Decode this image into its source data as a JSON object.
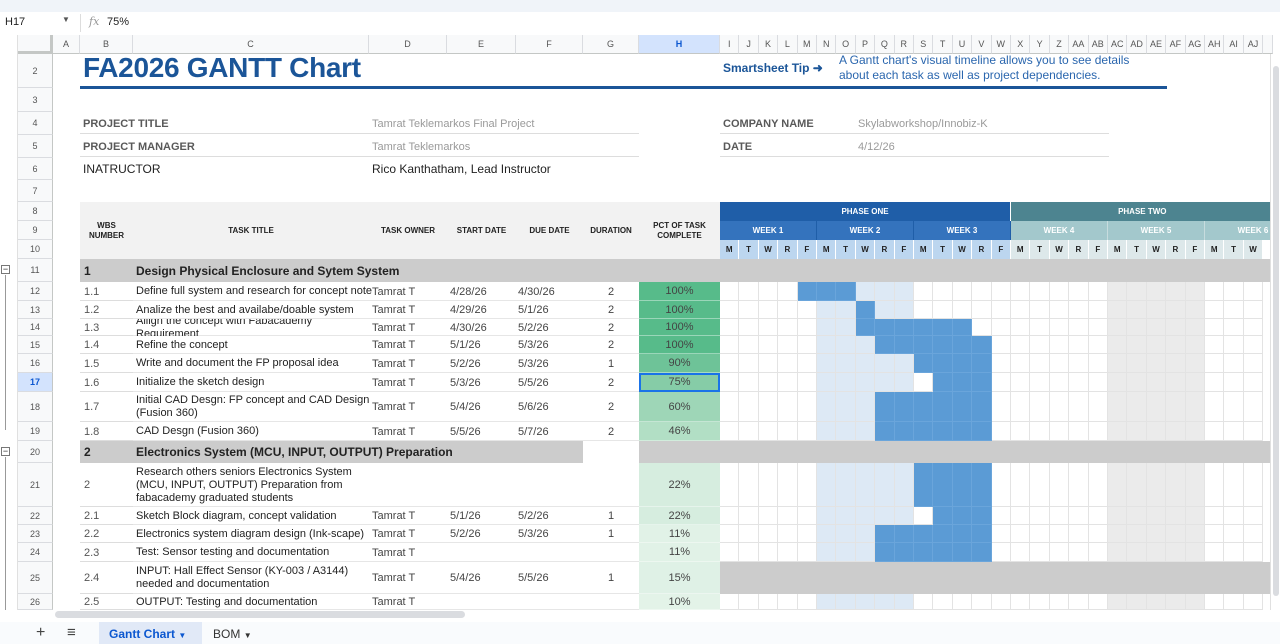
{
  "formula_bar": {
    "cell_ref": "H17",
    "fx": "fx",
    "value": "75%"
  },
  "columns": [
    "A",
    "B",
    "C",
    "D",
    "E",
    "F",
    "G",
    "H"
  ],
  "gantt_columns": [
    "I",
    "J",
    "K",
    "L",
    "M",
    "N",
    "O",
    "P",
    "Q",
    "R",
    "S",
    "T",
    "U",
    "V",
    "W",
    "X",
    "Y",
    "Z",
    "AA",
    "AB",
    "AC",
    "AD",
    "AE",
    "AF",
    "AG",
    "AH",
    "AI",
    "AJ"
  ],
  "rows": [
    "2",
    "3",
    "4",
    "5",
    "6",
    "7",
    "8",
    "9",
    "10",
    "11",
    "12",
    "13",
    "14",
    "15",
    "16",
    "17",
    "18",
    "19",
    "20",
    "21",
    "22",
    "23",
    "24",
    "25",
    "26"
  ],
  "title": "FA2026 GANTT Chart",
  "tip": {
    "label": "Smartsheet Tip ➜",
    "line1": "A Gantt chart's visual timeline allows you to see details",
    "line2": "about each task as well as project dependencies."
  },
  "project": {
    "title_label": "PROJECT TITLE",
    "title_value": "Tamrat Teklemarkos Final Project",
    "manager_label": "PROJECT MANAGER",
    "manager_value": "Tamrat Teklemarkos",
    "instructor_label": "INATRUCTOR",
    "instructor_value": "Rico Kanthatham, Lead Instructor",
    "company_label": "COMPANY NAME",
    "company_value": "Skylabworkshop/Innobiz-K",
    "date_label": "DATE",
    "date_value": "4/12/26"
  },
  "headers": {
    "wbs": "WBS NUMBER",
    "task": "TASK TITLE",
    "owner": "TASK OWNER",
    "start": "START DATE",
    "due": "DUE DATE",
    "duration": "DURATION",
    "pct": "PCT OF TASK COMPLETE"
  },
  "phases": [
    {
      "label": "PHASE ONE",
      "color": "#1f5ea8"
    },
    {
      "label": "PHASE TWO",
      "color": "#4d8490"
    }
  ],
  "weeks": [
    "WEEK 1",
    "WEEK 2",
    "WEEK 3",
    "WEEK 4",
    "WEEK 5",
    "WEEK 6"
  ],
  "days": [
    "M",
    "T",
    "W",
    "R",
    "F",
    "M",
    "T",
    "W",
    "R",
    "F",
    "M",
    "T",
    "W",
    "R",
    "F",
    "M",
    "T",
    "W",
    "R",
    "F",
    "M",
    "T",
    "W",
    "R",
    "F",
    "M",
    "T",
    "W"
  ],
  "tasks": [
    {
      "row": 11,
      "type": "section",
      "wbs": "1",
      "title": "Design Physical Enclosure and Sytem System"
    },
    {
      "row": 12,
      "wbs": "1.1",
      "title": "Define full system and research for concept note",
      "owner": "Tamrat T",
      "start": "4/28/26",
      "due": "4/30/26",
      "duration": "2",
      "pct": "100%",
      "fill": [
        4,
        6
      ]
    },
    {
      "row": 13,
      "wbs": "1.2",
      "title": "Analize the best and availabe/doable system",
      "owner": "Tamrat T",
      "start": "4/29/26",
      "due": "5/1/26",
      "duration": "2",
      "pct": "100%",
      "fill": [
        7,
        7
      ]
    },
    {
      "row": 14,
      "wbs": "1.3",
      "title": "Allign the concept with Fabacademy Requirement",
      "owner": "Tamrat T",
      "start": "4/30/26",
      "due": "5/2/26",
      "duration": "2",
      "pct": "100%",
      "fill": [
        7,
        12
      ]
    },
    {
      "row": 15,
      "wbs": "1.4",
      "title": "Refine the concept",
      "owner": "Tamrat T",
      "start": "5/1/26",
      "due": "5/3/26",
      "duration": "2",
      "pct": "100%",
      "fill": [
        8,
        13
      ]
    },
    {
      "row": 16,
      "wbs": "1.5",
      "title": "Write and document the FP proposal idea",
      "owner": "Tamrat T",
      "start": "5/2/26",
      "due": "5/3/26",
      "duration": "1",
      "pct": "90%",
      "fill": [
        10,
        13
      ]
    },
    {
      "row": 17,
      "wbs": "1.6",
      "title": "Initialize the sketch design",
      "owner": "Tamrat T",
      "start": "5/3/26",
      "due": "5/5/26",
      "duration": "2",
      "pct": "75%",
      "fill": [
        11,
        13
      ]
    },
    {
      "row": 18,
      "wbs": "1.7",
      "title": "Initial CAD Desgn: FP concept and CAD Design\n(Fusion 360)",
      "owner": "Tamrat T",
      "start": "5/4/26",
      "due": "5/6/26",
      "duration": "2",
      "pct": "60%",
      "fill": [
        8,
        13
      ]
    },
    {
      "row": 19,
      "wbs": "1.8",
      "title": " CAD Desgn (Fusion 360)",
      "owner": "Tamrat T",
      "start": "5/5/26",
      "due": "5/7/26",
      "duration": "2",
      "pct": "46%",
      "fill": [
        8,
        13
      ]
    },
    {
      "row": 20,
      "type": "section",
      "wbs": "2",
      "title": "Electronics System (MCU, INPUT, OUTPUT) Preparation"
    },
    {
      "row": 21,
      "wbs": "2",
      "title": "Research others seniors Electronics System\n(MCU, INPUT, OUTPUT) Preparation from\nfabacademy graduated students",
      "owner": "",
      "start": "",
      "due": "",
      "duration": "",
      "pct": "22%",
      "fill": [
        10,
        13
      ]
    },
    {
      "row": 22,
      "wbs": "2.1",
      "title": "Sketch Block diagram, concept validation",
      "owner": "Tamrat T",
      "start": "5/1/26",
      "due": "5/2/26",
      "duration": "1",
      "pct": "22%",
      "fill": [
        11,
        13
      ]
    },
    {
      "row": 23,
      "wbs": "2.2",
      "title": "Electronics system diagram design (Ink-scape)",
      "owner": "Tamrat T",
      "start": "5/2/26",
      "due": "5/3/26",
      "duration": "1",
      "pct": "11%",
      "fill": [
        8,
        13
      ]
    },
    {
      "row": 24,
      "wbs": "2.3",
      "title": "Test:  Sensor testing and documentation",
      "owner": "Tamrat T",
      "start": "",
      "due": "",
      "duration": "",
      "pct": "11%",
      "fill": [
        8,
        13
      ]
    },
    {
      "row": 25,
      "wbs": "2.4",
      "title": "INPUT: Hall Effect Sensor (KY-003 / A3144)\nneeded and documentation",
      "owner": "Tamrat T",
      "start": "5/4/26",
      "due": "5/5/26",
      "duration": "1",
      "pct": "15%",
      "gantt_gray": true
    },
    {
      "row": 26,
      "wbs": "2.5",
      "title": "OUTPUT: Testing and documentation",
      "owner": "Tamrat T",
      "start": "",
      "due": "",
      "duration": "",
      "pct": "10%"
    }
  ],
  "pct_colors": {
    "100%": "#57bb8a",
    "90%": "#6ec398",
    "75%": "#86cca7",
    "60%": "#9ed6b7",
    "46%": "#b2dfc5",
    "22%": "#d6eddf",
    "15%": "#dff1e6",
    "11%": "#e1f2e7",
    "10%": "#e3f3e8"
  },
  "colors": {
    "title": "#1b5598",
    "bar": "#5b9bd5",
    "band": "#dde9f5",
    "section": "#cccccc"
  },
  "sheet_tabs": [
    {
      "label": "Gantt Chart",
      "active": true
    },
    {
      "label": "BOM",
      "active": false
    }
  ]
}
